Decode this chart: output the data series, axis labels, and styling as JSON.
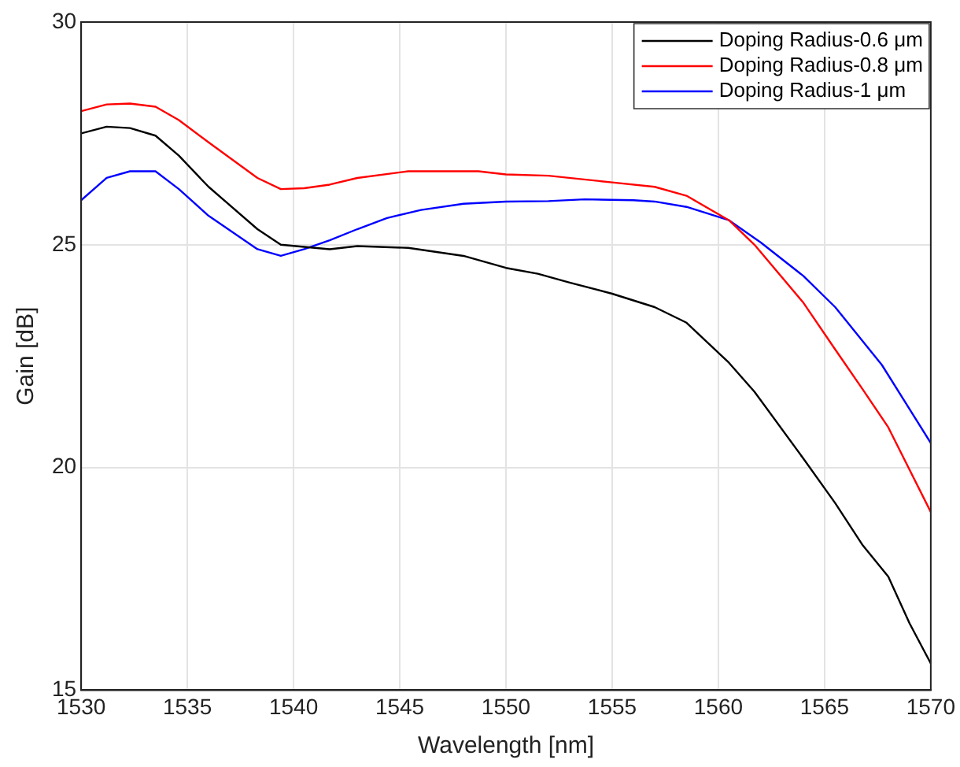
{
  "chart_data": {
    "type": "line",
    "xlabel": "Wavelength [nm]",
    "ylabel": "Gain [dB]",
    "xlim": [
      1530,
      1570
    ],
    "xticks": [
      1530,
      1535,
      1540,
      1545,
      1550,
      1555,
      1560,
      1565,
      1570
    ],
    "ylim": [
      15,
      30
    ],
    "yticks": [
      15,
      20,
      25,
      30
    ],
    "grid": true,
    "legend": "top right",
    "marker": "none",
    "line_style": "solid",
    "series": [
      {
        "name": "Doping Radius-0.6 μm",
        "color": "#000000",
        "x": [
          1530,
          1531.2,
          1532.3,
          1533.5,
          1534.6,
          1536,
          1538.3,
          1539.4,
          1541.7,
          1543,
          1545.4,
          1548,
          1550,
          1551.5,
          1553,
          1555,
          1557,
          1558.5,
          1560.5,
          1561.7,
          1564,
          1565.5,
          1566.8,
          1568,
          1569,
          1570
        ],
        "values": [
          27.5,
          27.65,
          27.62,
          27.45,
          27.0,
          26.3,
          25.35,
          25.0,
          24.9,
          24.97,
          24.93,
          24.75,
          24.48,
          24.35,
          24.15,
          23.9,
          23.6,
          23.25,
          22.35,
          21.7,
          20.2,
          19.2,
          18.25,
          17.55,
          16.5,
          15.6
        ]
      },
      {
        "name": "Doping Radius-0.8 μm",
        "color": "#ff0000",
        "x": [
          1530,
          1531.2,
          1532.3,
          1533.5,
          1534.6,
          1536,
          1538.3,
          1539.4,
          1540.5,
          1541.7,
          1543,
          1545.4,
          1548.7,
          1550,
          1552,
          1555,
          1557,
          1558.5,
          1560.5,
          1561.7,
          1564,
          1565.5,
          1566.8,
          1568,
          1570
        ],
        "values": [
          28.0,
          28.15,
          28.17,
          28.1,
          27.8,
          27.3,
          26.5,
          26.25,
          26.27,
          26.35,
          26.5,
          26.65,
          26.65,
          26.58,
          26.55,
          26.4,
          26.3,
          26.1,
          25.55,
          25.0,
          23.7,
          22.65,
          21.75,
          20.9,
          19.0
        ]
      },
      {
        "name": "Doping Radius-1 μm",
        "color": "#0000ff",
        "x": [
          1530,
          1531.2,
          1532.3,
          1533.5,
          1534.6,
          1536,
          1538.3,
          1539.4,
          1540.5,
          1541.7,
          1543,
          1544.4,
          1546,
          1548,
          1550,
          1552,
          1553.7,
          1556,
          1557,
          1558.5,
          1560.5,
          1562,
          1564,
          1565.5,
          1567.7,
          1570
        ],
        "values": [
          26.0,
          26.5,
          26.65,
          26.65,
          26.25,
          25.65,
          24.9,
          24.75,
          24.9,
          25.1,
          25.35,
          25.6,
          25.78,
          25.92,
          25.97,
          25.98,
          26.02,
          26.0,
          25.97,
          25.85,
          25.55,
          25.05,
          24.3,
          23.6,
          22.3,
          20.55
        ]
      }
    ]
  }
}
